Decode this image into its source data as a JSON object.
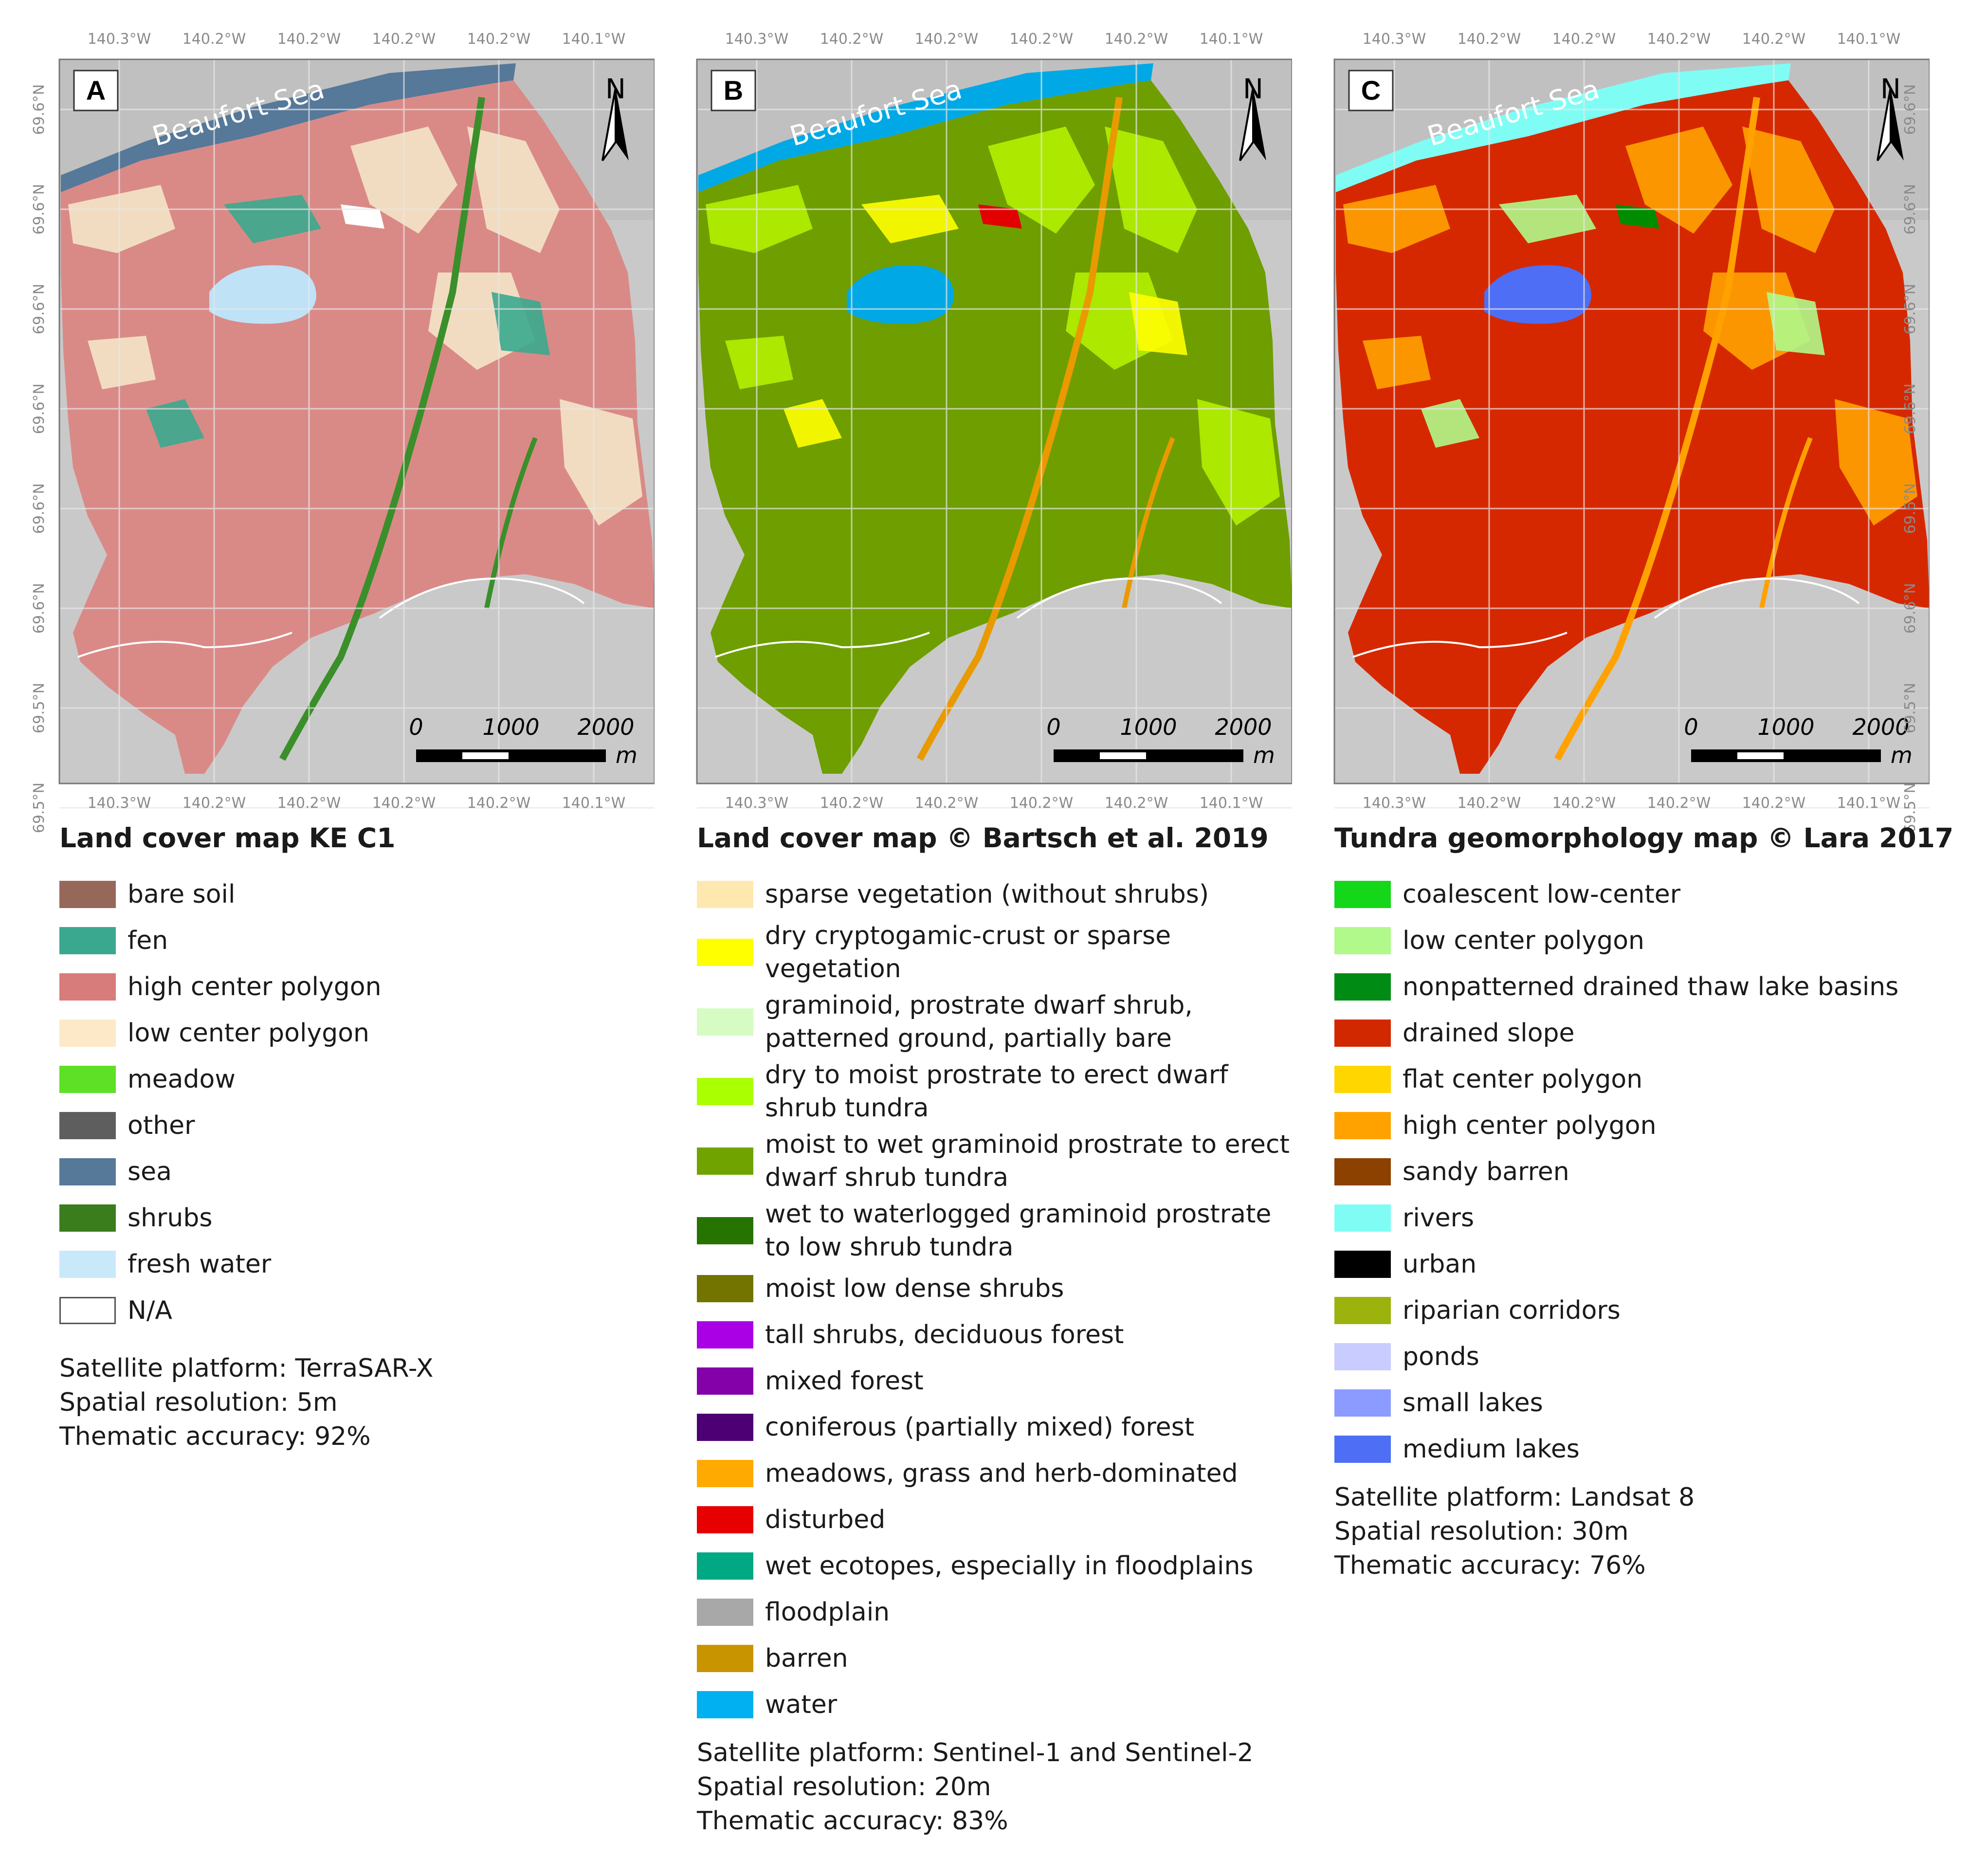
{
  "colors": {
    "hillshade": "#c9c9c9",
    "grid": "#e8e8e8",
    "frame": "#777777",
    "coastline": "#ffffff"
  },
  "north_icon": "north-arrow-icon",
  "panels": [
    {
      "id": "A",
      "panel_label": "A",
      "sea_label": "Beaufort Sea",
      "north_label": "N",
      "scale": {
        "zero": "0",
        "mid": "1000",
        "max": "2000",
        "unit": "m"
      },
      "lon_labels": [
        "140.3°W",
        "140.2°W",
        "140.2°W",
        "140.2°W",
        "140.2°W",
        "140.1°W",
        "140.1°W"
      ],
      "lat_labels": [
        "69.6°N",
        "69.6°N",
        "69.6°N",
        "69.6°N",
        "69.6°N",
        "69.6°N",
        "69.5°N",
        "69.5°N"
      ],
      "fill_colors": {
        "main": "#d98a87",
        "secondary": "#f4e4c8",
        "tertiary": "#3aa88e",
        "water": "#bfe2f7",
        "sea": "#567899",
        "accent": "#ffffff",
        "river": "#3a8f2a"
      },
      "legend_title": "Land cover map KE C1",
      "legend": [
        {
          "label": "bare soil",
          "color": "#96685a"
        },
        {
          "label": "fen",
          "color": "#3aa88e"
        },
        {
          "label": "high center polygon",
          "color": "#d77b7b"
        },
        {
          "label": "low center polygon",
          "color": "#fde9c7"
        },
        {
          "label": "meadow",
          "color": "#5de026"
        },
        {
          "label": "other",
          "color": "#5e5e5e"
        },
        {
          "label": "sea",
          "color": "#567899"
        },
        {
          "label": "shrubs",
          "color": "#3a7d1d"
        },
        {
          "label": "fresh water",
          "color": "#c9e9fb"
        },
        {
          "label": "N/A",
          "color": "#ffffff",
          "outlined": true
        }
      ],
      "meta": [
        "Satellite platform: TerraSAR-X",
        "Spatial resolution: 5m",
        "Thematic accuracy: 92%"
      ]
    },
    {
      "id": "B",
      "panel_label": "B",
      "sea_label": "Beaufort Sea",
      "north_label": "N",
      "scale": {
        "zero": "0",
        "mid": "1000",
        "max": "2000",
        "unit": "m"
      },
      "lon_labels": [
        "140.3°W",
        "140.2°W",
        "140.2°W",
        "140.2°W",
        "140.2°W",
        "140.1°W",
        "140.1°W"
      ],
      "lat_labels": [],
      "fill_colors": {
        "main": "#6e9e00",
        "secondary": "#b2f000",
        "tertiary": "#ffff00",
        "water": "#00a9e6",
        "sea": "#00a9e6",
        "accent": "#e20000",
        "river": "#e89a00"
      },
      "legend_title": "Land cover map © Bartsch et al. 2019",
      "legend": [
        {
          "label": "sparse vegetation (without shrubs)",
          "color": "#fde8b0"
        },
        {
          "label": "dry cryptogamic-crust or sparse vegetation",
          "color": "#ffff00",
          "tall": true
        },
        {
          "label": "graminoid, prostrate dwarf shrub, patterned ground, partially bare",
          "color": "#d6fcc4",
          "tall": true
        },
        {
          "label": "dry to moist prostrate to erect dwarf shrub tundra",
          "color": "#aaff00",
          "tall": true
        },
        {
          "label": "moist to wet graminoid prostrate to erect dwarf shrub tundra",
          "color": "#70a300",
          "tall": true
        },
        {
          "label": "wet to waterlogged graminoid prostrate to low shrub tundra",
          "color": "#267300",
          "tall": true
        },
        {
          "label": "moist low dense shrubs",
          "color": "#737300"
        },
        {
          "label": "tall shrubs, deciduous forest",
          "color": "#a900e6"
        },
        {
          "label": "mixed forest",
          "color": "#8400a8"
        },
        {
          "label": "coniferous (partially mixed) forest",
          "color": "#4c0073"
        },
        {
          "label": "meadows, grass and herb-dominated",
          "color": "#ffaa00"
        },
        {
          "label": "disturbed",
          "color": "#e60000"
        },
        {
          "label": "wet ecotopes, especially in floodplains",
          "color": "#00a884"
        },
        {
          "label": "floodplain",
          "color": "#a8a8a8"
        },
        {
          "label": "barren",
          "color": "#c89400"
        },
        {
          "label": "water",
          "color": "#00b0f0"
        }
      ],
      "meta": [
        "Satellite platform: Sentinel-1 and Sentinel-2",
        "Spatial resolution: 20m",
        "Thematic accuracy: 83%"
      ]
    },
    {
      "id": "C",
      "panel_label": "C",
      "sea_label": "Beaufort Sea",
      "north_label": "N",
      "scale": {
        "zero": "0",
        "mid": "1000",
        "max": "2000",
        "unit": "m"
      },
      "lon_labels": [
        "140.3°W",
        "140.2°W",
        "140.2°W",
        "140.2°W",
        "140.2°W",
        "140.1°W",
        "140.1°W"
      ],
      "lat_labels": [
        "69.6°N",
        "69.6°N",
        "69.6°N",
        "69.6°N",
        "69.6°N",
        "69.6°N",
        "69.5°N",
        "69.5°N"
      ],
      "fill_colors": {
        "main": "#d62800",
        "secondary": "#ffa200",
        "tertiary": "#b0f98a",
        "water": "#4d6ef5",
        "sea": "#7ffdf5",
        "accent": "#008c00",
        "river": "#ffa200"
      },
      "legend_title": "Tundra geomorphology map © Lara 2017",
      "legend": [
        {
          "label": "coalescent low-center",
          "color": "#14d71a"
        },
        {
          "label": "low center polygon",
          "color": "#b0f98a"
        },
        {
          "label": "nonpatterned drained thaw lake basins",
          "color": "#008c14"
        },
        {
          "label": "drained slope",
          "color": "#d22800"
        },
        {
          "label": "flat center polygon",
          "color": "#ffd600"
        },
        {
          "label": "high center polygon",
          "color": "#ffa200"
        },
        {
          "label": "sandy barren",
          "color": "#8c4100"
        },
        {
          "label": "rivers",
          "color": "#7ffdf5"
        },
        {
          "label": "urban",
          "color": "#000000"
        },
        {
          "label": "riparian corridors",
          "color": "#9bb30c"
        },
        {
          "label": "ponds",
          "color": "#c8ccff"
        },
        {
          "label": "small lakes",
          "color": "#8c9bff"
        },
        {
          "label": "medium lakes",
          "color": "#4d6ef5"
        }
      ],
      "meta": [
        "Satellite platform: Landsat 8",
        "Spatial resolution: 30m",
        "Thematic accuracy: 76%"
      ]
    }
  ]
}
